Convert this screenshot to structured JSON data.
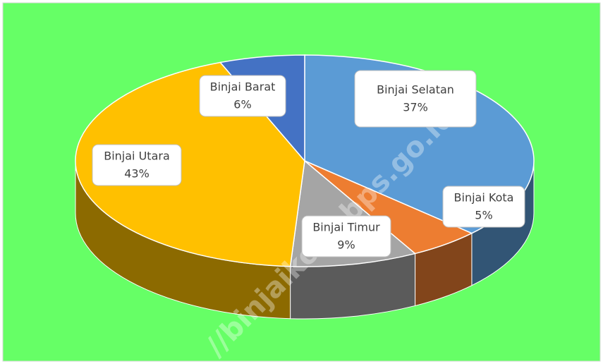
{
  "chart_data": {
    "type": "pie3d",
    "categories": [
      "Binjai Selatan",
      "Binjai Kota",
      "Binjai Timur",
      "Binjai Utara",
      "Binjai Barat"
    ],
    "values": [
      37,
      5,
      9,
      43,
      6
    ],
    "value_labels": [
      "37%",
      "5%",
      "9%",
      "43%",
      "6%"
    ],
    "colors": [
      "#5b9bd5",
      "#ed7d31",
      "#a5a5a5",
      "#ffc000",
      "#4472c4"
    ],
    "background": "#66ff66",
    "watermark": "//binjaikota.bps.go.id"
  }
}
